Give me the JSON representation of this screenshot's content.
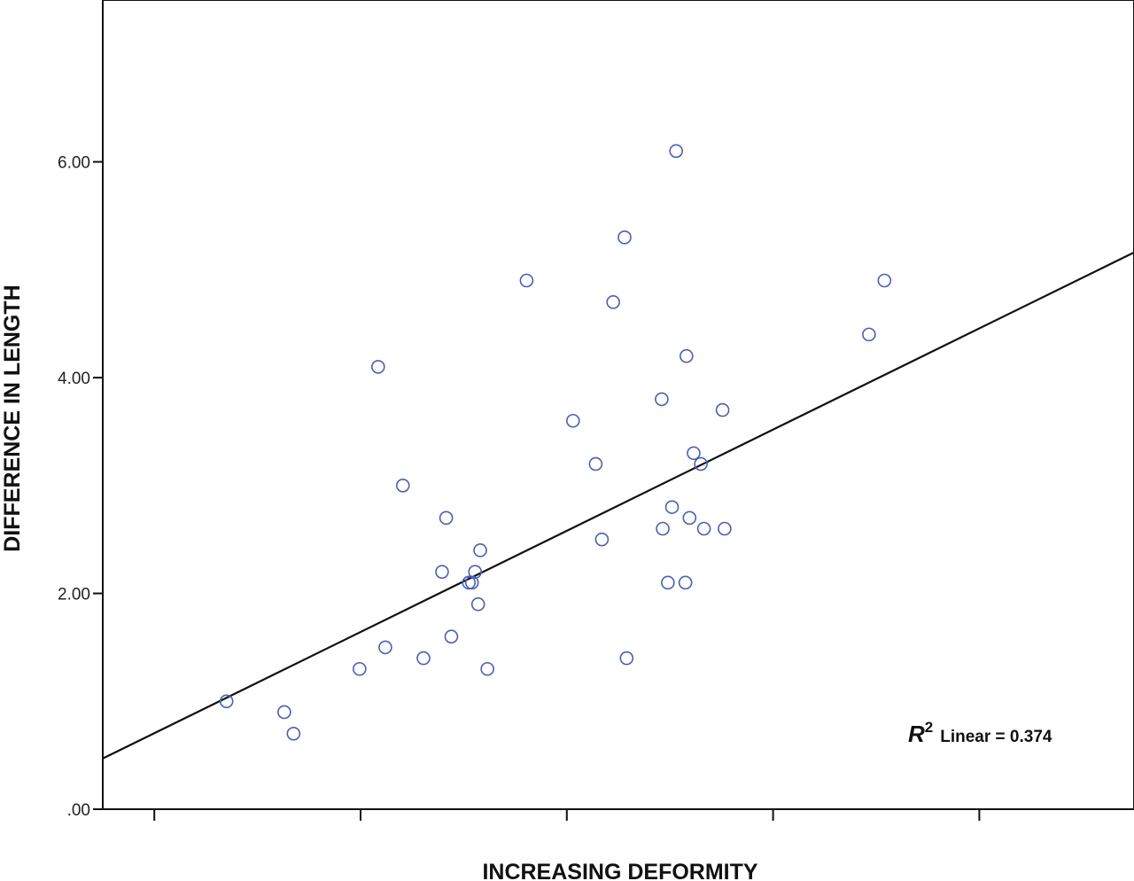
{
  "chart_data": {
    "type": "scatter",
    "title": "",
    "xlabel": "INCREASING DEFORMITY",
    "ylabel": "DIFFERENCE IN LENGTH",
    "ylim": [
      0,
      7.5
    ],
    "yticks": [
      0,
      2,
      4,
      6
    ],
    "ytick_labels": [
      ".00",
      "2.00",
      "4.00",
      "6.00"
    ],
    "xlim": [
      0,
      100
    ],
    "xticks": [
      5,
      25,
      45,
      65,
      85
    ],
    "grid": false,
    "legend": "none",
    "marker_color": "#4a5fb5",
    "line_color": "#111111",
    "series": [
      {
        "values_x": [
          12.0,
          17.6,
          18.5,
          24.9,
          26.7,
          27.4,
          29.1,
          31.1,
          32.9,
          33.3,
          33.8,
          35.5,
          35.8,
          36.1,
          36.4,
          36.6,
          37.3,
          41.1,
          45.6,
          47.8,
          48.4,
          49.5,
          50.6,
          50.8,
          54.2,
          54.3,
          54.8,
          55.2,
          55.6,
          56.5,
          56.6,
          56.9,
          57.3,
          58.0,
          58.3,
          60.1,
          60.3,
          74.3,
          75.8
        ],
        "values_y": [
          1.0,
          0.9,
          0.7,
          1.3,
          4.1,
          1.5,
          3.0,
          1.4,
          2.2,
          2.7,
          1.6,
          2.1,
          2.1,
          2.2,
          1.9,
          2.4,
          1.3,
          4.9,
          3.6,
          3.2,
          2.5,
          4.7,
          5.3,
          1.4,
          3.8,
          2.6,
          2.1,
          2.8,
          6.1,
          2.1,
          4.2,
          2.7,
          3.3,
          3.2,
          2.6,
          3.7,
          2.6,
          4.4,
          4.9
        ]
      }
    ],
    "fit_line": {
      "x": [
        0,
        100
      ],
      "y": [
        0.47,
        5.16
      ]
    },
    "annotation": {
      "symbol": "R",
      "superscript": "2",
      "text": "Linear = 0.374"
    }
  }
}
